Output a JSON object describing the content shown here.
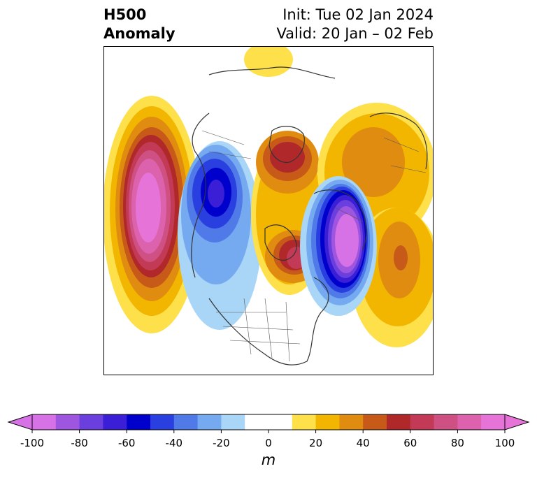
{
  "title": {
    "left_line1": "H500",
    "left_line2": "Anomaly",
    "right_line1": "Init: Tue 02 Jan 2024",
    "right_line2": "Valid: 20 Jan – 02 Feb"
  },
  "colorbar": {
    "unit": "m",
    "min": -100,
    "max": 100,
    "step": 10,
    "extend": "both",
    "tick_labels": [
      "-100",
      "-80",
      "-60",
      "-40",
      "-20",
      "0",
      "20",
      "40",
      "60",
      "80",
      "100"
    ],
    "tick_values": [
      -100,
      -80,
      -60,
      -40,
      -20,
      0,
      20,
      40,
      60,
      80,
      100
    ],
    "colors": [
      "#d671e6",
      "#9e55e0",
      "#6b3ede",
      "#3a1fd6",
      "#0000cc",
      "#2a3fe0",
      "#4f7ae8",
      "#75aaf0",
      "#a9d6f7",
      "#ffffff",
      "#ffffff",
      "#fde04a",
      "#f2b600",
      "#e08c10",
      "#c75a18",
      "#b0282a",
      "#c23a55",
      "#cf5083",
      "#dc62ad",
      "#e674d8"
    ],
    "under_color": "#d671e6",
    "over_color": "#e674d8"
  },
  "map": {
    "projection": "north polar stereographic",
    "anomaly_centers": [
      {
        "region": "North Pacific",
        "sign": "positive",
        "peak_m": 100
      },
      {
        "region": "Western Canada / Alaska",
        "sign": "negative",
        "peak_m": -60
      },
      {
        "region": "Greenland / Hudson Bay",
        "sign": "positive",
        "peak_m": 60
      },
      {
        "region": "Arctic Siberia",
        "sign": "positive",
        "peak_m": 60
      },
      {
        "region": "Northern Europe / Scandinavia",
        "sign": "negative",
        "peak_m": -100
      },
      {
        "region": "Eastern Europe / Western Asia",
        "sign": "positive",
        "peak_m": 50
      }
    ]
  }
}
